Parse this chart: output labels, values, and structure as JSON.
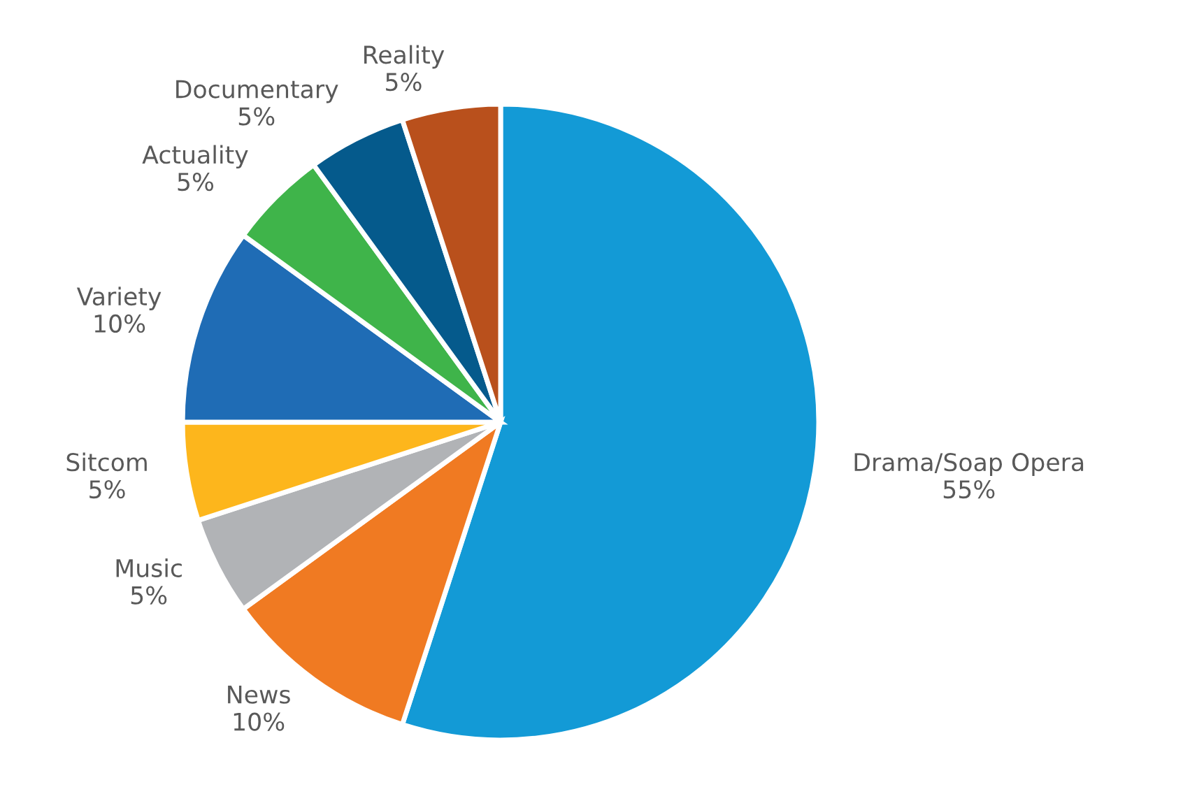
{
  "chart_data": {
    "type": "pie",
    "categories": [
      "Drama/Soap Opera",
      "News",
      "Music",
      "Sitcom",
      "Variety",
      "Actuality",
      "Documentary",
      "Reality"
    ],
    "values": [
      55,
      10,
      5,
      5,
      10,
      5,
      5,
      5
    ],
    "value_labels": [
      "55%",
      "10%",
      "5%",
      "5%",
      "10%",
      "5%",
      "5%",
      "5%"
    ],
    "colors": [
      "#139ad6",
      "#f07a22",
      "#b1b3b6",
      "#fdb61c",
      "#1f6cb5",
      "#3fb44a",
      "#055a8c",
      "#b9501c"
    ],
    "legend": false
  }
}
